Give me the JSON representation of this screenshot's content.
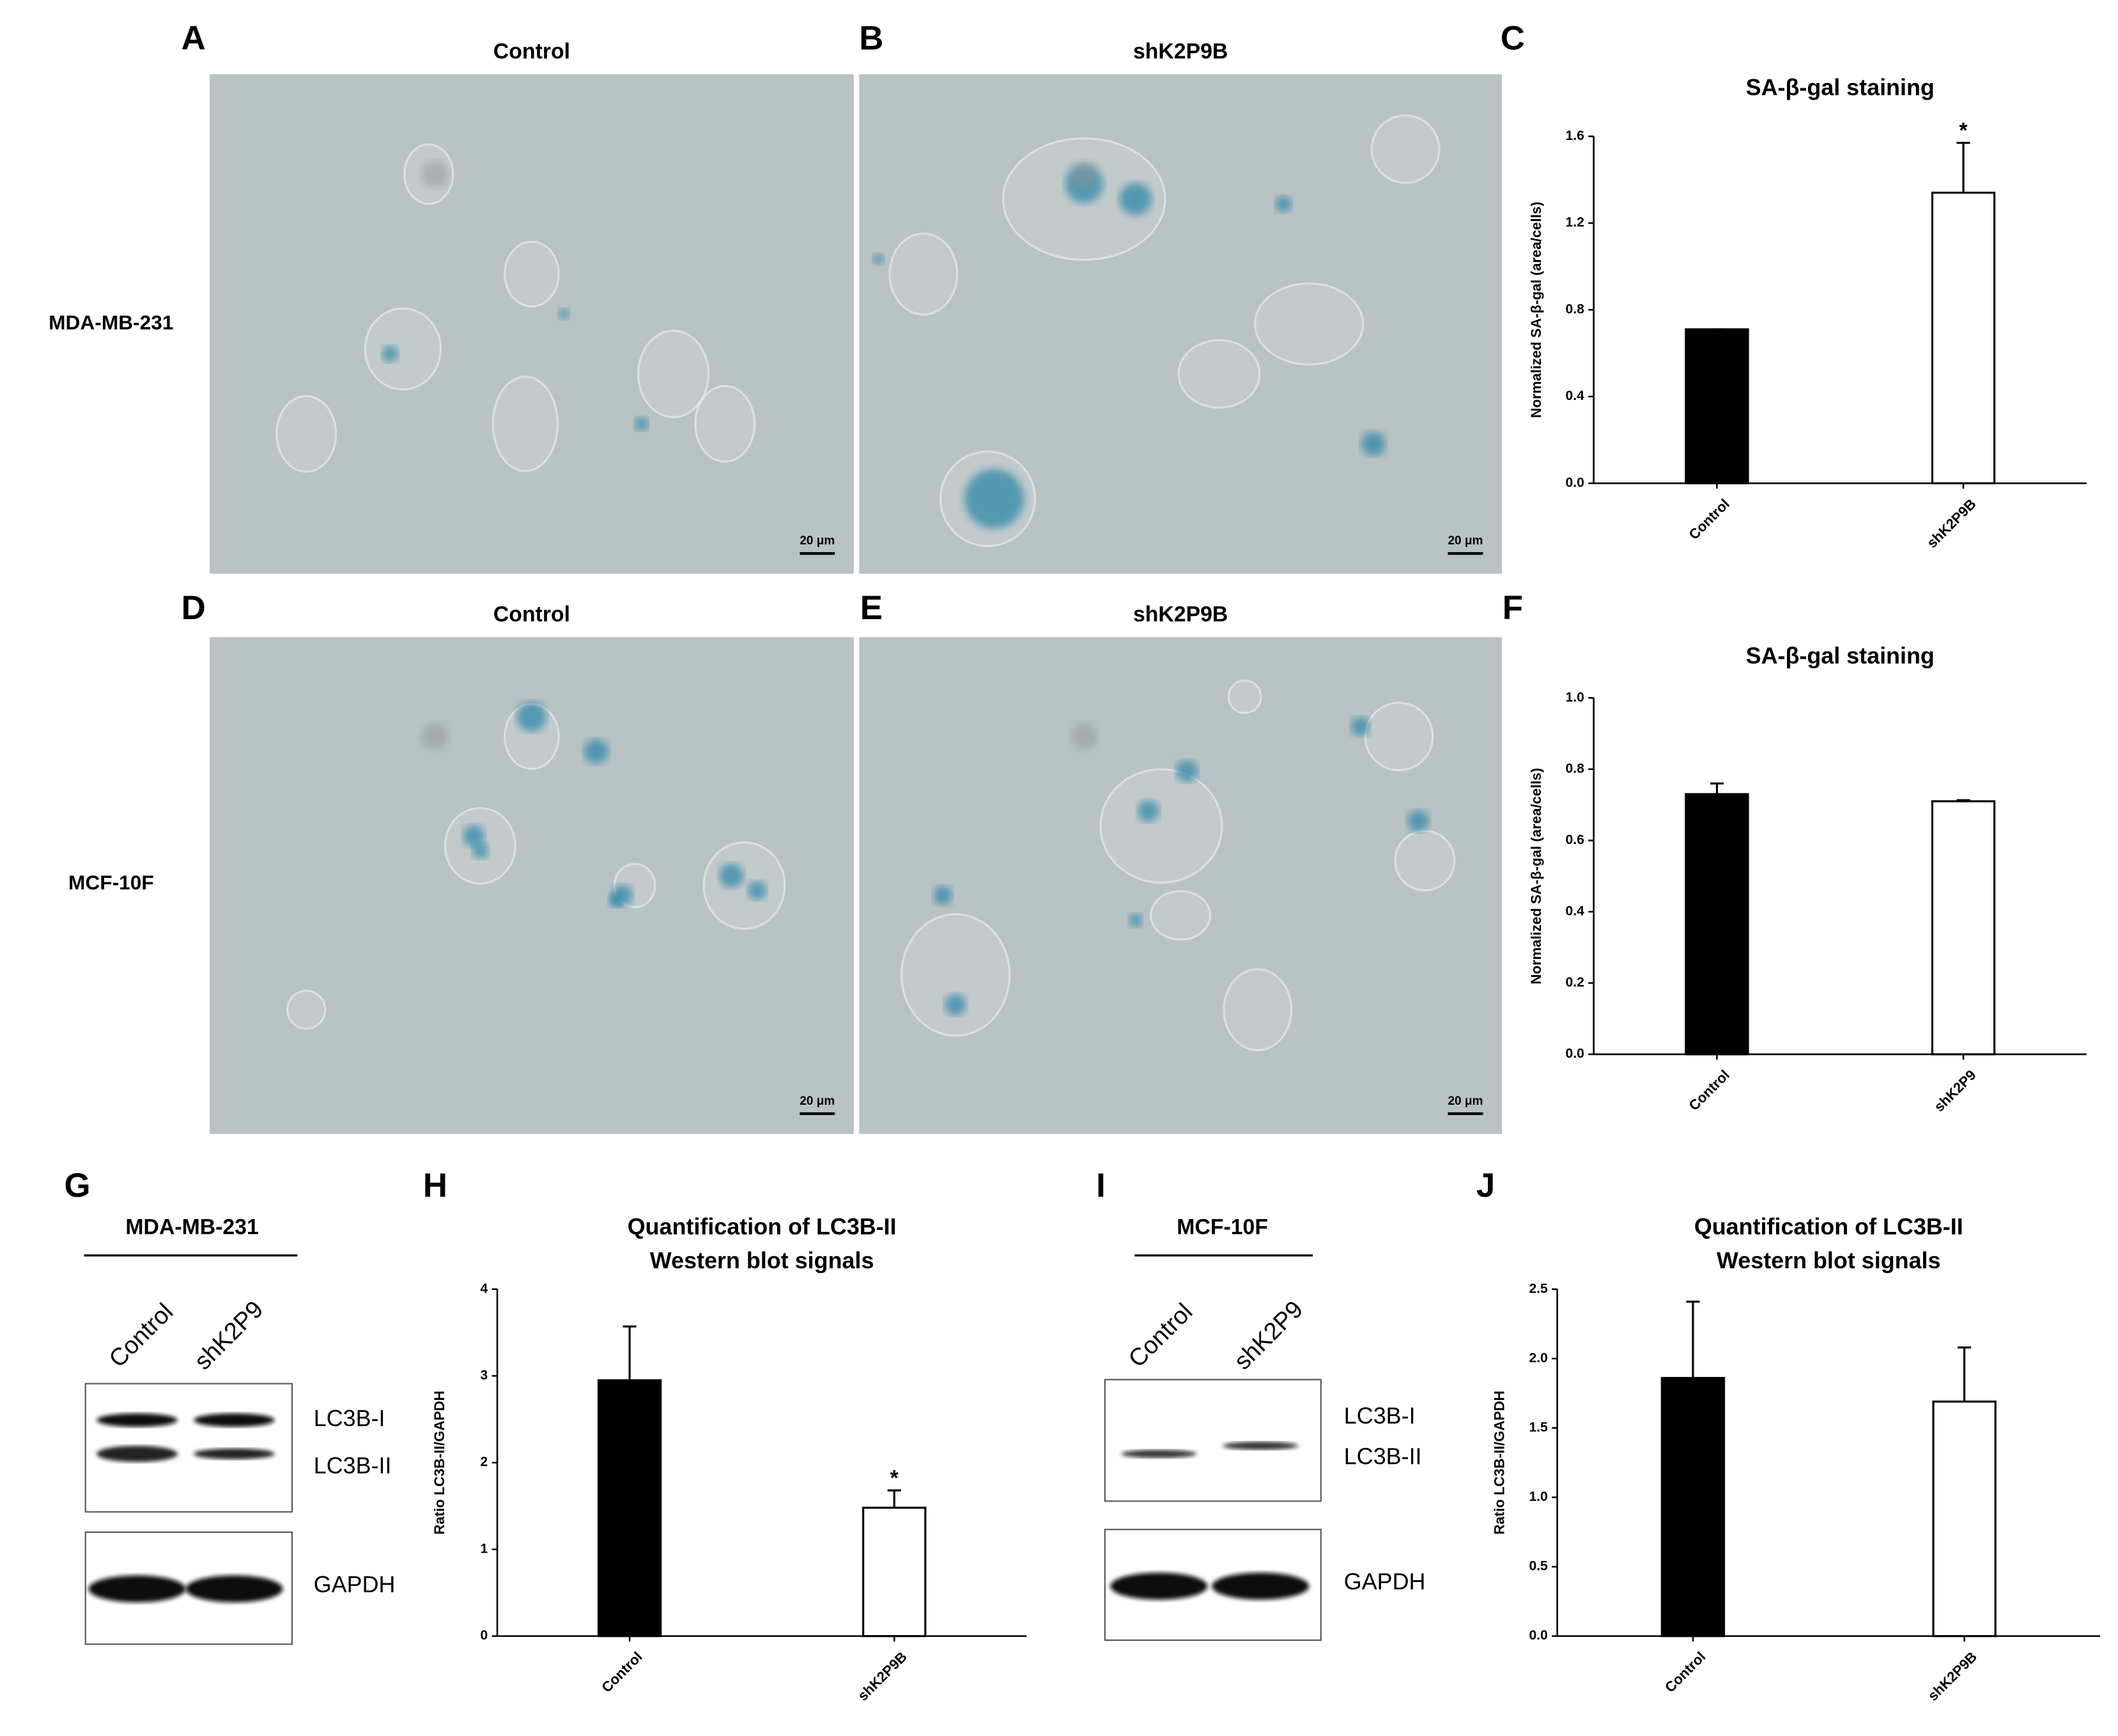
{
  "panels": {
    "letters": [
      "A",
      "B",
      "C",
      "D",
      "E",
      "F",
      "G",
      "H",
      "I",
      "J"
    ],
    "row_labels": [
      "MDA-MB-231",
      "MCF-10F"
    ],
    "micrographs": [
      {
        "title": "Control",
        "scale": "20 μm"
      },
      {
        "title": "shK2P9B",
        "scale": "20 μm"
      },
      {
        "title": "Control",
        "scale": "20 μm"
      },
      {
        "title": "shK2P9B",
        "scale": "20 μm"
      }
    ],
    "blots": [
      {
        "title": "MDA-MB-231",
        "lanes": [
          "Control",
          "shK2P9"
        ],
        "bands": [
          "LC3B-I",
          "LC3B-II",
          "GAPDH"
        ]
      },
      {
        "title": "MCF-10F",
        "lanes": [
          "Control",
          "shK2P9"
        ],
        "bands": [
          "LC3B-I",
          "LC3B-II",
          "GAPDH"
        ]
      }
    ]
  },
  "chart_data": [
    {
      "type": "bar",
      "title": [
        "SA-β-gal staining"
      ],
      "ylabel": "Normalized SA-β-gal (area/cells)",
      "categories": [
        "Control",
        "shK2P9B"
      ],
      "values": [
        0.71,
        1.34
      ],
      "errors": [
        0,
        0.23
      ],
      "colors": [
        "#000000",
        "#ffffff"
      ],
      "significance": [
        null,
        "*"
      ],
      "ylim": [
        0,
        1.6
      ],
      "yticks": [
        {
          "value": 0,
          "label": "0.0"
        },
        0.4,
        0.8,
        1.2,
        1.6
      ]
    },
    {
      "type": "bar",
      "title": [
        "SA-β-gal staining"
      ],
      "ylabel": "Normalized SA-β-gal (area/cells)",
      "categories": [
        "Control",
        "shK2P9"
      ],
      "values": [
        0.73,
        0.71
      ],
      "errors": [
        0.03,
        0.003
      ],
      "colors": [
        "#000000",
        "#ffffff"
      ],
      "significance": [
        null,
        null
      ],
      "ylim": [
        0,
        1.0
      ],
      "yticks": [
        {
          "value": 0,
          "label": "0.0"
        },
        0.2,
        0.4,
        0.6,
        0.8,
        {
          "value": 1,
          "label": "1.0"
        }
      ]
    },
    {
      "type": "bar",
      "title": [
        "Quantification of LC3B-II",
        "Western blot signals"
      ],
      "ylabel": "Ratio LC3B-II/GAPDH",
      "categories": [
        "Control",
        "shK2P9B"
      ],
      "values": [
        2.95,
        1.48
      ],
      "errors": [
        0.62,
        0.2
      ],
      "colors": [
        "#000000",
        "#ffffff"
      ],
      "significance": [
        null,
        "*"
      ],
      "ylim": [
        0,
        4
      ],
      "yticks": [
        0,
        1,
        2,
        3,
        4
      ]
    },
    {
      "type": "bar",
      "title": [
        "Quantification of LC3B-II",
        "Western blot signals"
      ],
      "ylabel": "Ratio LC3B-II/GAPDH",
      "categories": [
        "Control",
        "shK2P9B"
      ],
      "values": [
        1.86,
        1.69
      ],
      "errors": [
        0.55,
        0.39
      ],
      "colors": [
        "#000000",
        "#ffffff"
      ],
      "significance": [
        null,
        null
      ],
      "ylim": [
        0,
        2.5
      ],
      "yticks": [
        {
          "value": 0,
          "label": "0.0"
        },
        0.5,
        {
          "value": 1,
          "label": "1.0"
        },
        1.5,
        {
          "value": 2,
          "label": "2.0"
        },
        2.5
      ]
    }
  ]
}
